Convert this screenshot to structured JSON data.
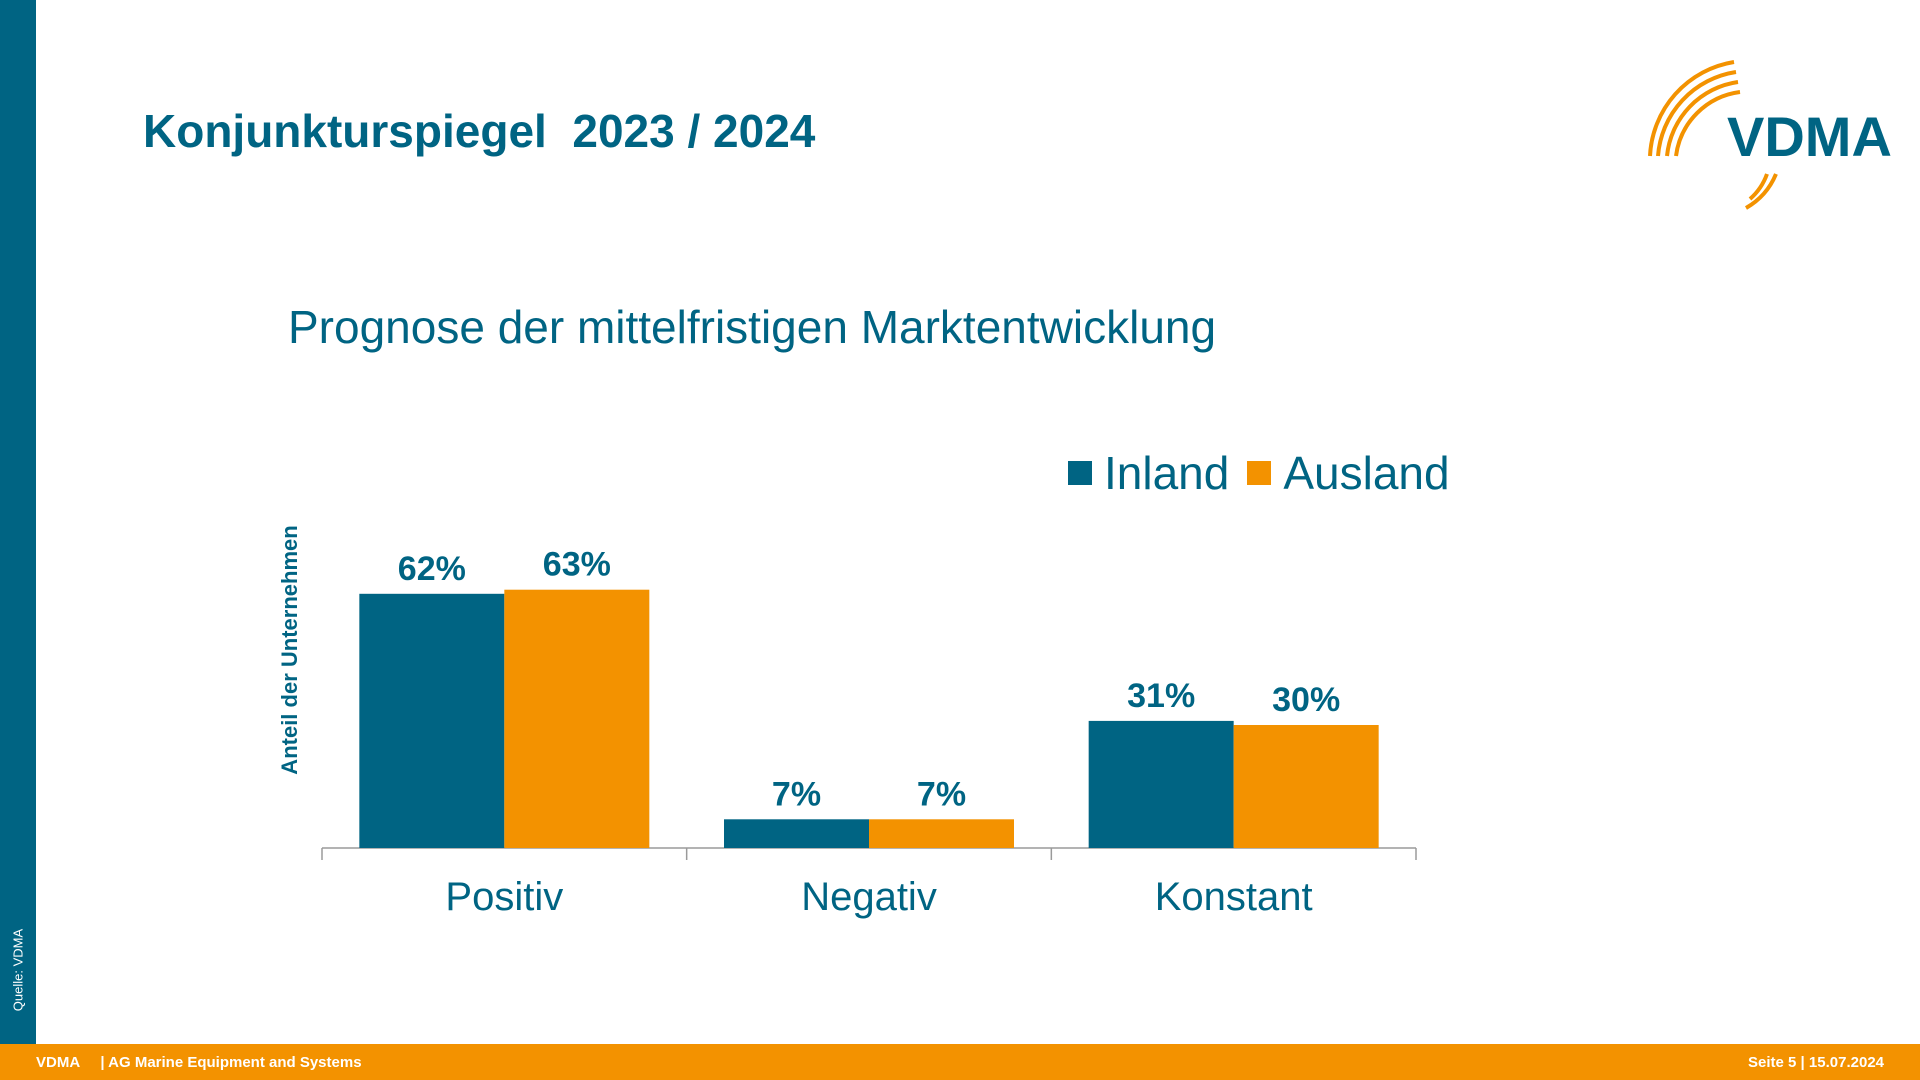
{
  "title": "Konjunkturspiegel  2023 / 2024",
  "logo": {
    "text": "VDMA"
  },
  "source_note": "Quelle: VDMA",
  "footer": {
    "org": "VDMA",
    "group": "| AG Marine Equipment and Systems",
    "page": "Seite 5 | 15.07.2024"
  },
  "colors": {
    "primary": "#006483",
    "accent": "#f39200",
    "axis": "#9a9a9a"
  },
  "chart_data": {
    "type": "bar",
    "title": "Prognose der mittelfristigen Marktentwicklung",
    "xlabel": "",
    "ylabel": "Anteil der Unternehmen",
    "ylim": [
      0,
      70
    ],
    "grid": false,
    "legend_position": "top-right",
    "categories": [
      "Positiv",
      "Negativ",
      "Konstant"
    ],
    "series": [
      {
        "name": "Inland",
        "color": "#006483",
        "values": [
          62,
          7,
          31
        ],
        "labels": [
          "62%",
          "7%",
          "31%"
        ]
      },
      {
        "name": "Ausland",
        "color": "#f39200",
        "values": [
          63,
          7,
          30
        ],
        "labels": [
          "63%",
          "7%",
          "30%"
        ]
      }
    ]
  }
}
